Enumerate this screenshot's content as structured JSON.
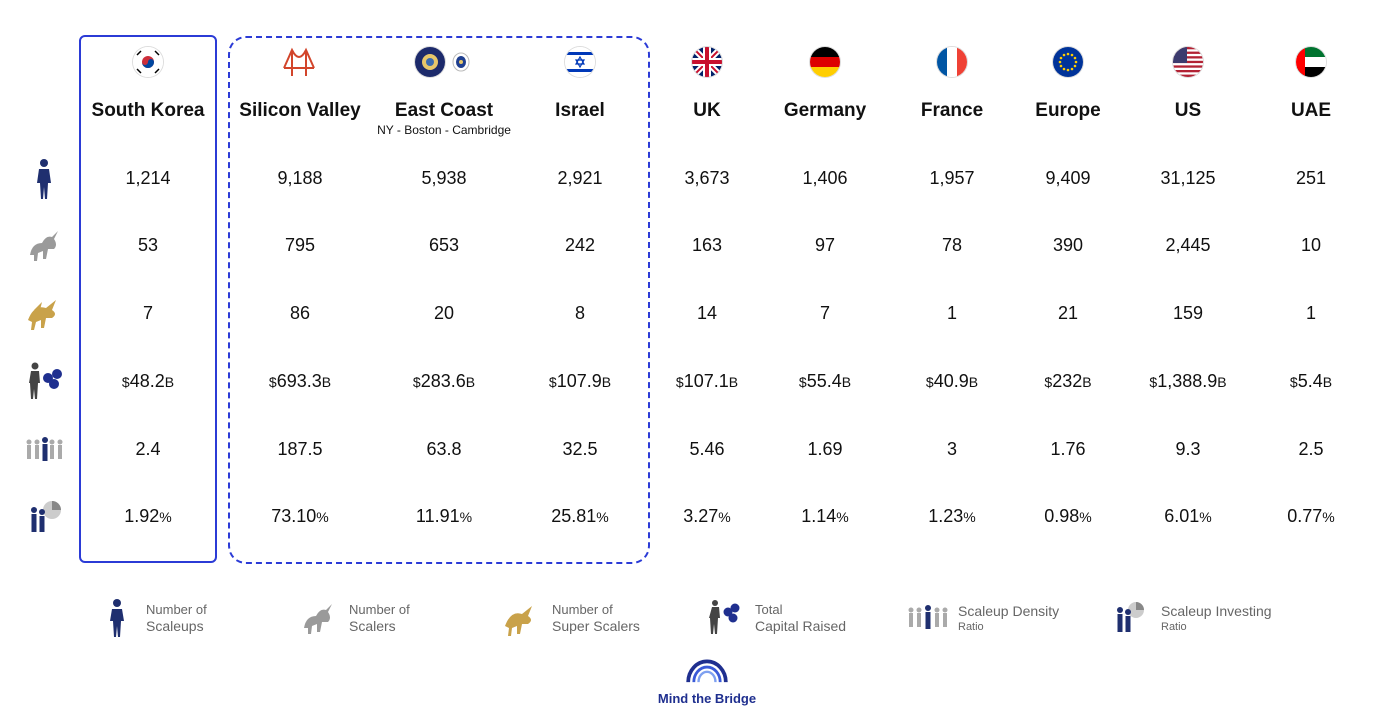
{
  "columns": [
    {
      "name": "South Korea",
      "flag": "south-korea-flag"
    },
    {
      "name": "Silicon Valley",
      "flag": "golden-gate-bridge-icon"
    },
    {
      "name": "East Coast",
      "sub": "NY - Boston - Cambridge",
      "flag": "new-york-massachusetts-seals"
    },
    {
      "name": "Israel",
      "flag": "israel-flag"
    },
    {
      "name": "UK",
      "flag": "uk-flag"
    },
    {
      "name": "Germany",
      "flag": "germany-flag"
    },
    {
      "name": "France",
      "flag": "france-flag"
    },
    {
      "name": "Europe",
      "flag": "eu-flag"
    },
    {
      "name": "US",
      "flag": "us-flag"
    },
    {
      "name": "UAE",
      "flag": "uae-flag"
    }
  ],
  "rows": {
    "scaleups": [
      "1,214",
      "9,188",
      "5,938",
      "2,921",
      "3,673",
      "1,406",
      "1,957",
      "9,409",
      "31,125",
      "251"
    ],
    "scalers": [
      "53",
      "795",
      "653",
      "242",
      "163",
      "97",
      "78",
      "390",
      "2,445",
      "10"
    ],
    "super_scalers": [
      "7",
      "86",
      "20",
      "8",
      "14",
      "7",
      "1",
      "21",
      "159",
      "1"
    ],
    "capital": [
      {
        "prefix": "$",
        "value": "48.2",
        "suffix": "B"
      },
      {
        "prefix": "$",
        "value": "693.3",
        "suffix": "B"
      },
      {
        "prefix": "$",
        "value": "283.6",
        "suffix": "B"
      },
      {
        "prefix": "$",
        "value": "107.9",
        "suffix": "B"
      },
      {
        "prefix": "$",
        "value": "107.1",
        "suffix": "B"
      },
      {
        "prefix": "$",
        "value": "55.4",
        "suffix": "B"
      },
      {
        "prefix": "$",
        "value": "40.9",
        "suffix": "B"
      },
      {
        "prefix": "$",
        "value": "232",
        "suffix": "B"
      },
      {
        "prefix": "$",
        "value": "1,388.9",
        "suffix": "B"
      },
      {
        "prefix": "$",
        "value": "5.4",
        "suffix": "B"
      }
    ],
    "density": [
      "2.4",
      "187.5",
      "63.8",
      "32.5",
      "5.46",
      "1.69",
      "3",
      "1.76",
      "9.3",
      "2.5"
    ],
    "investing": [
      {
        "value": "1.92",
        "suffix": "%"
      },
      {
        "value": "73.10",
        "suffix": "%"
      },
      {
        "value": "11.91",
        "suffix": "%"
      },
      {
        "value": "25.81",
        "suffix": "%"
      },
      {
        "value": "3.27",
        "suffix": "%"
      },
      {
        "value": "1.14",
        "suffix": "%"
      },
      {
        "value": "1.23",
        "suffix": "%"
      },
      {
        "value": "0.98",
        "suffix": "%"
      },
      {
        "value": "6.01",
        "suffix": "%"
      },
      {
        "value": "0.77",
        "suffix": "%"
      }
    ]
  },
  "legend": [
    {
      "line1": "Number of",
      "line2": "Scaleups",
      "icon": "scaleup-person-icon"
    },
    {
      "line1": "Number of",
      "line2": "Scalers",
      "icon": "unicorn-icon"
    },
    {
      "line1": "Number of",
      "line2": "Super Scalers",
      "icon": "golden-unicorn-icon"
    },
    {
      "line1": "Total",
      "line2": "Capital Raised",
      "icon": "capital-raised-icon"
    },
    {
      "line1": "Scaleup Density",
      "line2": "Ratio",
      "icon": "density-people-icon"
    },
    {
      "line1": "Scaleup Investing",
      "line2": "Ratio",
      "icon": "investing-ratio-icon"
    }
  ],
  "brand": {
    "name": "Mind the Bridge",
    "color": "#1f2f8f"
  },
  "colors": {
    "accent": "#2b3bd6",
    "navy": "#1f2f6f",
    "gold": "#c9a24a",
    "grey": "#9a9a9a"
  }
}
